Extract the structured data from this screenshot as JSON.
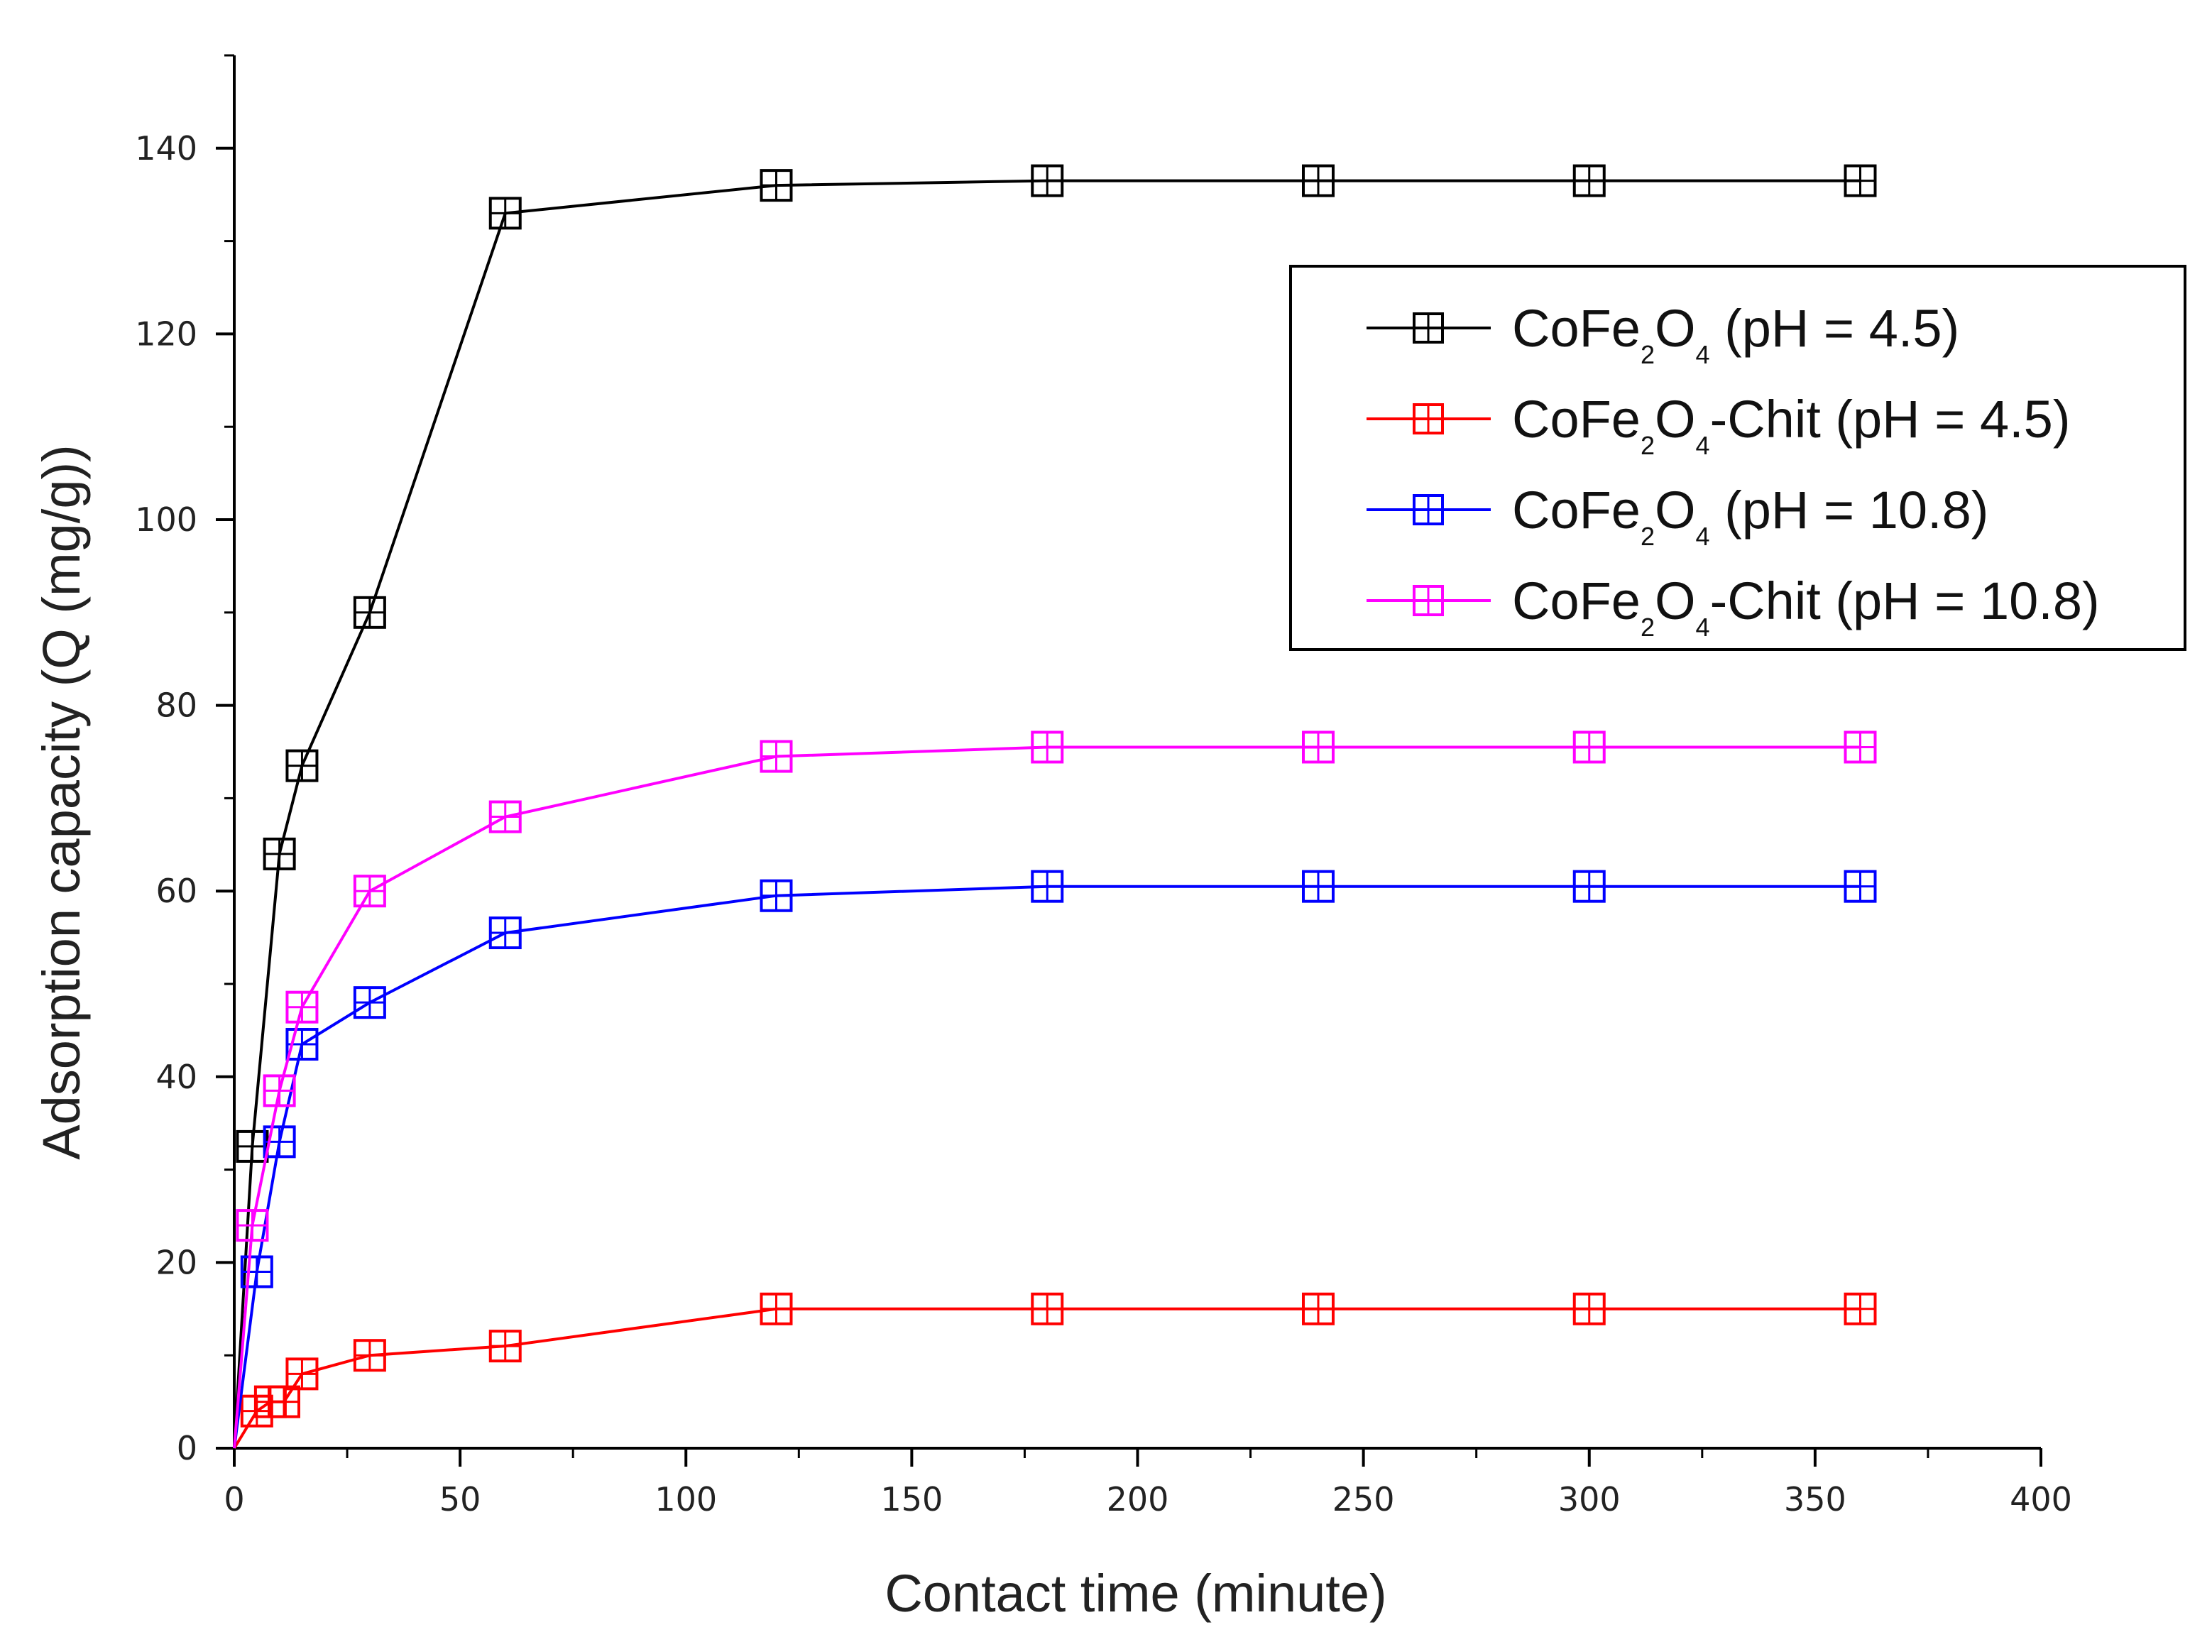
{
  "chart_data": {
    "type": "line",
    "title": "",
    "xlabel": "Contact time (minute)",
    "ylabel": "Adsorption capacity (Q (mg/g))",
    "xlim": [
      0,
      400
    ],
    "ylim": [
      0,
      150
    ],
    "xticks": [
      0,
      50,
      100,
      150,
      200,
      250,
      300,
      350,
      400
    ],
    "yticks": [
      0,
      20,
      40,
      60,
      80,
      100,
      120,
      140
    ],
    "grid": false,
    "legend_position": "upper-right",
    "marker": "square-with-cross",
    "series": [
      {
        "name": "CoFe2O4 (pH = 4.5)",
        "legend": {
          "prefix": "CoFe",
          "sub1": "2",
          "mid": "O",
          "sub2": "4",
          "suffix": " (pH = 4.5)"
        },
        "color": "#000000",
        "x": [
          0,
          4,
          10,
          15,
          30,
          60,
          120,
          180,
          240,
          300,
          360
        ],
        "y": [
          0,
          32.5,
          64,
          73.5,
          90,
          133,
          136,
          136.5,
          136.5,
          136.5,
          136.5
        ]
      },
      {
        "name": "CoFe2O4-Chit (pH = 4.5)",
        "legend": {
          "prefix": "CoFe",
          "sub1": "2",
          "mid": "O",
          "sub2": "4",
          "suffix": "-Chit (pH = 4.5)"
        },
        "color": "#ff0000",
        "x": [
          0,
          5,
          8,
          11,
          15,
          30,
          60,
          120,
          180,
          240,
          300,
          360
        ],
        "y": [
          0,
          4,
          5,
          5,
          8,
          10,
          11,
          15,
          15,
          15,
          15,
          15
        ]
      },
      {
        "name": "CoFe2O4 (pH = 10.8)",
        "legend": {
          "prefix": "CoFe",
          "sub1": "2",
          "mid": "O",
          "sub2": "4",
          "suffix": " (pH = 10.8)"
        },
        "color": "#0000ff",
        "x": [
          0,
          5,
          10,
          15,
          30,
          60,
          120,
          180,
          240,
          300,
          360
        ],
        "y": [
          0,
          19,
          33,
          43.5,
          48,
          55.5,
          59.5,
          60.5,
          60.5,
          60.5,
          60.5
        ]
      },
      {
        "name": "CoFe2O4-Chit (pH = 10.8)",
        "legend": {
          "prefix": "CoFe",
          "sub1": "2",
          "mid": "O",
          "sub2": "4",
          "suffix": "-Chit (pH = 10.8)"
        },
        "color": "#ff00ff",
        "x": [
          0,
          4,
          10,
          15,
          30,
          60,
          120,
          180,
          240,
          300,
          360
        ],
        "y": [
          0,
          24,
          38.5,
          47.5,
          60,
          68,
          74.5,
          75.5,
          75.5,
          75.5,
          75.5
        ]
      }
    ]
  }
}
